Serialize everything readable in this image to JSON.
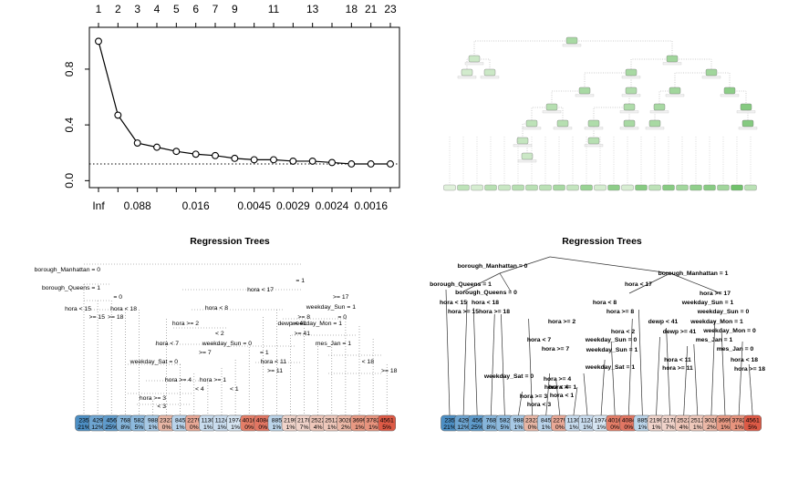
{
  "chart_data": [
    {
      "type": "line",
      "top_ticks": [
        "1",
        "2",
        "3",
        "4",
        "5",
        "6",
        "7",
        "9",
        "11",
        "13",
        "18",
        "21",
        "23"
      ],
      "bottom_ticks": [
        "Inf",
        "0.088",
        "0.016",
        "0.0045",
        "0.0029",
        "0.0024",
        "0.0016"
      ],
      "y_ticks": [
        "0.0",
        "0.4",
        "0.8"
      ],
      "x_index": [
        1,
        2,
        3,
        4,
        5,
        6,
        7,
        8,
        9,
        10,
        11,
        12,
        13,
        14,
        15,
        16
      ],
      "y": [
        1.0,
        0.47,
        0.27,
        0.24,
        0.21,
        0.19,
        0.18,
        0.16,
        0.15,
        0.15,
        0.14,
        0.14,
        0.13,
        0.12,
        0.12,
        0.12
      ],
      "reference_line": 0.12,
      "ylim": [
        -0.05,
        1.1
      ],
      "xlim": [
        0.5,
        16.5
      ],
      "grid": false
    },
    {
      "type": "tree",
      "title": "",
      "levels": 8,
      "leaves": 23
    },
    {
      "type": "tree",
      "title": "Regression Trees",
      "split_labels": [
        "borough_Manhattan = 0",
        "= 1",
        "borough_Queens = 1",
        "= 0",
        "hora < 15",
        "hora < 18",
        ">= 15",
        ">= 18",
        "hora < 17",
        ">= 17",
        "weekday_Sun = 1",
        "= 0",
        "hora < 8",
        ">= 8",
        "hora >= 2",
        "< 2",
        "hora < 7",
        ">= 7",
        "dewp < 41",
        ">= 41",
        "weekday_Sun = 0",
        "= 1",
        "weekday_Mon = 1",
        "mes_Jan = 1",
        "weekday_Sat = 0",
        "hora < 11",
        ">= 11",
        "hora >= 4",
        "< 4",
        "hora >= 1",
        "< 1",
        "hora >= 3",
        "< 3",
        "< 18",
        ">= 18"
      ],
      "leaf_values": [
        "235",
        "429",
        "456",
        "768",
        "582",
        "988",
        "2323",
        "845",
        "2279",
        "1130",
        "1124",
        "1974",
        "4016",
        "4084",
        "885",
        "2199",
        "2178",
        "2522",
        "2512",
        "3028",
        "3699",
        "3782",
        "4561"
      ],
      "leaf_percents": [
        "21%",
        "12%",
        "25%",
        "8%",
        "5%",
        "1%",
        "0%",
        "1%",
        "0%",
        "1%",
        "1%",
        "1%",
        "0%",
        "0%",
        "1%",
        "1%",
        "7%",
        "4%",
        "1%",
        "2%",
        "1%",
        "1%",
        "5%"
      ]
    },
    {
      "type": "tree",
      "title": "Regression Trees",
      "split_labels": [
        "borough_Manhattan = 0",
        "borough_Manhattan = 1",
        "borough_Queens = 1",
        "borough_Queens = 0",
        "hora < 15",
        "hora < 18",
        "hora >= 15",
        "hora >= 18",
        "hora < 17",
        "hora >= 17",
        "weekday_Sun = 1",
        "weekday_Sun = 0",
        "hora < 8",
        "hora >= 8",
        "hora >= 2",
        "hora < 2",
        "dewp < 41",
        "dewp >= 41",
        "weekday_Mon = 1",
        "weekday_Mon = 0",
        "hora < 7",
        "hora >= 7",
        "weekday_Sun = 0",
        "weekday_Sun = 1",
        "mes_Jan = 1",
        "mes_Jan = 0",
        "weekday_Sat = 0",
        "weekday_Sat = 1",
        "hora < 11",
        "hora >= 11",
        "hora < 18",
        "hora >= 18",
        "hora >= 4",
        "hora < 4",
        "hora >= 1",
        "hora < 1",
        "hora >= 3",
        "hora < 3"
      ],
      "leaf_values": [
        "235",
        "429",
        "456",
        "768",
        "582",
        "988",
        "2323",
        "845",
        "2279",
        "1130",
        "1124",
        "1974",
        "4016",
        "4084",
        "885",
        "2199",
        "2178",
        "2522",
        "2512",
        "3028",
        "3699",
        "3782",
        "4561"
      ],
      "leaf_percents": [
        "21%",
        "12%",
        "25%",
        "8%",
        "5%",
        "1%",
        "0%",
        "1%",
        "0%",
        "1%",
        "1%",
        "1%",
        "0%",
        "0%",
        "1%",
        "1%",
        "7%",
        "4%",
        "1%",
        "2%",
        "1%",
        "1%",
        "5%"
      ]
    }
  ]
}
